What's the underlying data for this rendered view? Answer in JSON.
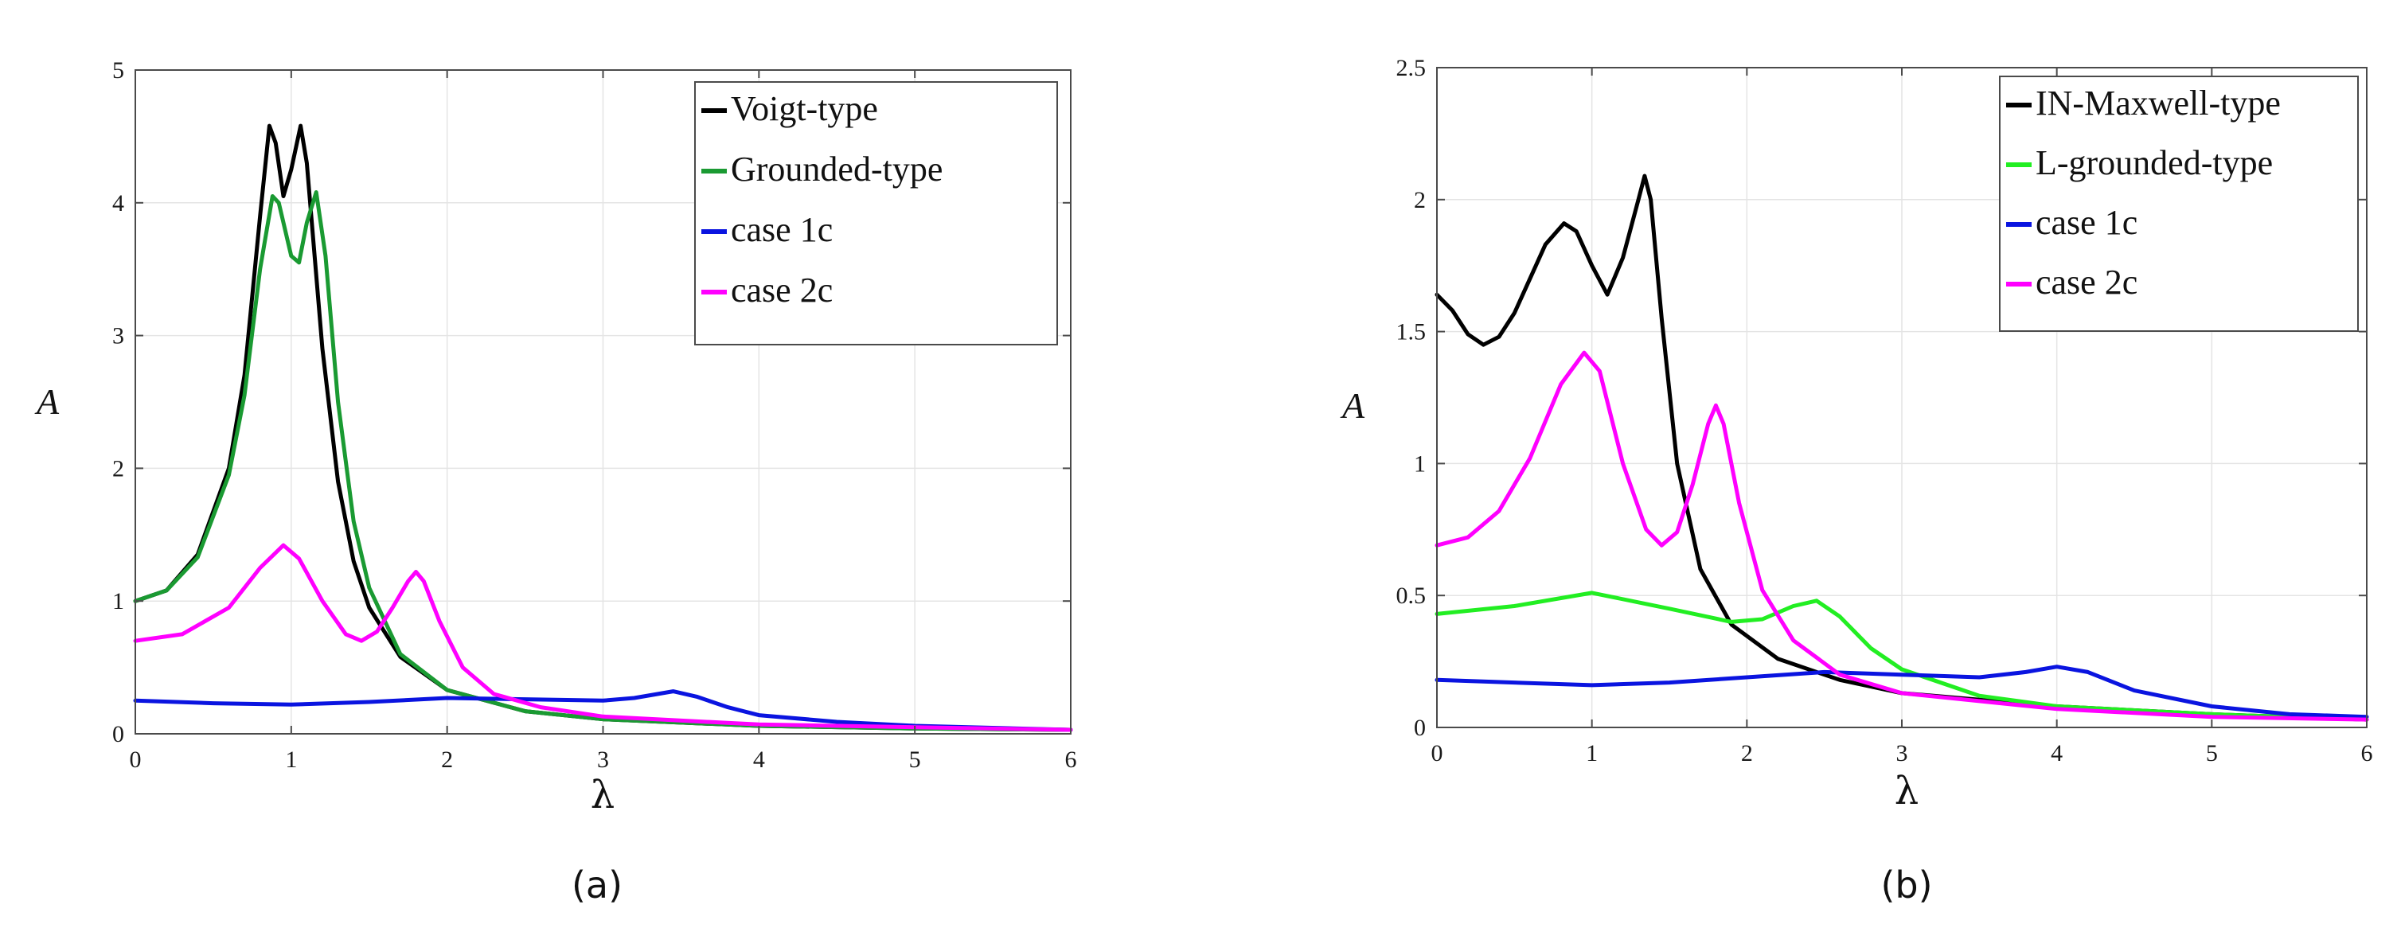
{
  "chart_data": [
    {
      "type": "line",
      "panel": "a",
      "caption": "(a)",
      "xlabel": "λ",
      "ylabel": "A",
      "xlim": [
        0,
        6
      ],
      "ylim": [
        0,
        5
      ],
      "xticks": [
        0,
        1,
        2,
        3,
        4,
        5,
        6
      ],
      "yticks": [
        0,
        1,
        2,
        3,
        4,
        5
      ],
      "grid": true,
      "legend_position": "top-right",
      "series": [
        {
          "name": "Voigt-type",
          "color": "#000000",
          "points": [
            [
              0,
              1.0
            ],
            [
              0.2,
              1.08
            ],
            [
              0.4,
              1.35
            ],
            [
              0.6,
              2.0
            ],
            [
              0.7,
              2.7
            ],
            [
              0.8,
              3.9
            ],
            [
              0.86,
              4.58
            ],
            [
              0.9,
              4.45
            ],
            [
              0.95,
              4.05
            ],
            [
              1.0,
              4.25
            ],
            [
              1.06,
              4.58
            ],
            [
              1.1,
              4.3
            ],
            [
              1.2,
              2.9
            ],
            [
              1.3,
              1.9
            ],
            [
              1.4,
              1.3
            ],
            [
              1.5,
              0.95
            ],
            [
              1.7,
              0.58
            ],
            [
              2.0,
              0.33
            ],
            [
              2.5,
              0.17
            ],
            [
              3.0,
              0.11
            ],
            [
              4.0,
              0.06
            ],
            [
              5.0,
              0.04
            ],
            [
              6.0,
              0.03
            ]
          ]
        },
        {
          "name": "Grounded-type",
          "color": "#1a9a32",
          "points": [
            [
              0,
              1.0
            ],
            [
              0.2,
              1.08
            ],
            [
              0.4,
              1.33
            ],
            [
              0.6,
              1.95
            ],
            [
              0.7,
              2.55
            ],
            [
              0.8,
              3.5
            ],
            [
              0.88,
              4.05
            ],
            [
              0.92,
              4.0
            ],
            [
              1.0,
              3.6
            ],
            [
              1.05,
              3.55
            ],
            [
              1.1,
              3.85
            ],
            [
              1.16,
              4.08
            ],
            [
              1.22,
              3.6
            ],
            [
              1.3,
              2.5
            ],
            [
              1.4,
              1.6
            ],
            [
              1.5,
              1.1
            ],
            [
              1.7,
              0.6
            ],
            [
              2.0,
              0.33
            ],
            [
              2.5,
              0.17
            ],
            [
              3.0,
              0.11
            ],
            [
              4.0,
              0.06
            ],
            [
              5.0,
              0.04
            ],
            [
              6.0,
              0.03
            ]
          ]
        },
        {
          "name": "case 1c",
          "color": "#0a14e0",
          "points": [
            [
              0,
              0.25
            ],
            [
              0.5,
              0.23
            ],
            [
              1.0,
              0.22
            ],
            [
              1.5,
              0.24
            ],
            [
              2.0,
              0.27
            ],
            [
              2.5,
              0.26
            ],
            [
              3.0,
              0.25
            ],
            [
              3.2,
              0.27
            ],
            [
              3.45,
              0.32
            ],
            [
              3.6,
              0.28
            ],
            [
              3.8,
              0.2
            ],
            [
              4.0,
              0.14
            ],
            [
              4.5,
              0.09
            ],
            [
              5.0,
              0.06
            ],
            [
              6.0,
              0.03
            ]
          ]
        },
        {
          "name": "case 2c",
          "color": "#ff00ff",
          "points": [
            [
              0,
              0.7
            ],
            [
              0.3,
              0.75
            ],
            [
              0.6,
              0.95
            ],
            [
              0.8,
              1.25
            ],
            [
              0.95,
              1.42
            ],
            [
              1.05,
              1.32
            ],
            [
              1.2,
              1.0
            ],
            [
              1.35,
              0.75
            ],
            [
              1.45,
              0.7
            ],
            [
              1.55,
              0.77
            ],
            [
              1.65,
              0.95
            ],
            [
              1.75,
              1.15
            ],
            [
              1.8,
              1.22
            ],
            [
              1.85,
              1.15
            ],
            [
              1.95,
              0.85
            ],
            [
              2.1,
              0.5
            ],
            [
              2.3,
              0.3
            ],
            [
              2.6,
              0.2
            ],
            [
              3.0,
              0.13
            ],
            [
              4.0,
              0.07
            ],
            [
              5.0,
              0.05
            ],
            [
              6.0,
              0.03
            ]
          ]
        }
      ]
    },
    {
      "type": "line",
      "panel": "b",
      "caption": "(b)",
      "xlabel": "λ",
      "ylabel": "A",
      "xlim": [
        0,
        6
      ],
      "ylim": [
        0,
        2.5
      ],
      "xticks": [
        0,
        1,
        2,
        3,
        4,
        5,
        6
      ],
      "yticks": [
        0,
        0.5,
        1,
        1.5,
        2,
        2.5
      ],
      "grid": true,
      "legend_position": "top-right",
      "series": [
        {
          "name": "IN-Maxwell-type",
          "color": "#000000",
          "points": [
            [
              0,
              1.64
            ],
            [
              0.1,
              1.58
            ],
            [
              0.2,
              1.49
            ],
            [
              0.3,
              1.45
            ],
            [
              0.4,
              1.48
            ],
            [
              0.5,
              1.57
            ],
            [
              0.6,
              1.7
            ],
            [
              0.7,
              1.83
            ],
            [
              0.82,
              1.91
            ],
            [
              0.9,
              1.88
            ],
            [
              1.0,
              1.75
            ],
            [
              1.1,
              1.64
            ],
            [
              1.2,
              1.78
            ],
            [
              1.3,
              2.0
            ],
            [
              1.34,
              2.09
            ],
            [
              1.38,
              2.0
            ],
            [
              1.45,
              1.55
            ],
            [
              1.55,
              1.0
            ],
            [
              1.7,
              0.6
            ],
            [
              1.9,
              0.39
            ],
            [
              2.2,
              0.26
            ],
            [
              2.6,
              0.18
            ],
            [
              3.0,
              0.13
            ],
            [
              4.0,
              0.08
            ],
            [
              5.0,
              0.05
            ],
            [
              6.0,
              0.03
            ]
          ]
        },
        {
          "name": "L-grounded-type",
          "color": "#22ee22",
          "points": [
            [
              0,
              0.43
            ],
            [
              0.5,
              0.46
            ],
            [
              1.0,
              0.51
            ],
            [
              1.5,
              0.45
            ],
            [
              1.9,
              0.4
            ],
            [
              2.1,
              0.41
            ],
            [
              2.3,
              0.46
            ],
            [
              2.45,
              0.48
            ],
            [
              2.6,
              0.42
            ],
            [
              2.8,
              0.3
            ],
            [
              3.0,
              0.22
            ],
            [
              3.5,
              0.12
            ],
            [
              4.0,
              0.08
            ],
            [
              5.0,
              0.05
            ],
            [
              6.0,
              0.03
            ]
          ]
        },
        {
          "name": "case 1c",
          "color": "#0a14e0",
          "points": [
            [
              0,
              0.18
            ],
            [
              0.5,
              0.17
            ],
            [
              1.0,
              0.16
            ],
            [
              1.5,
              0.17
            ],
            [
              2.0,
              0.19
            ],
            [
              2.5,
              0.21
            ],
            [
              3.0,
              0.2
            ],
            [
              3.5,
              0.19
            ],
            [
              3.8,
              0.21
            ],
            [
              4.0,
              0.23
            ],
            [
              4.2,
              0.21
            ],
            [
              4.5,
              0.14
            ],
            [
              5.0,
              0.08
            ],
            [
              5.5,
              0.05
            ],
            [
              6.0,
              0.04
            ]
          ]
        },
        {
          "name": "case 2c",
          "color": "#ff00ff",
          "points": [
            [
              0,
              0.69
            ],
            [
              0.2,
              0.72
            ],
            [
              0.4,
              0.82
            ],
            [
              0.6,
              1.02
            ],
            [
              0.8,
              1.3
            ],
            [
              0.95,
              1.42
            ],
            [
              1.05,
              1.35
            ],
            [
              1.2,
              1.0
            ],
            [
              1.35,
              0.75
            ],
            [
              1.45,
              0.69
            ],
            [
              1.55,
              0.74
            ],
            [
              1.65,
              0.92
            ],
            [
              1.75,
              1.15
            ],
            [
              1.8,
              1.22
            ],
            [
              1.85,
              1.15
            ],
            [
              1.95,
              0.85
            ],
            [
              2.1,
              0.52
            ],
            [
              2.3,
              0.33
            ],
            [
              2.6,
              0.2
            ],
            [
              3.0,
              0.13
            ],
            [
              4.0,
              0.07
            ],
            [
              5.0,
              0.04
            ],
            [
              6.0,
              0.03
            ]
          ]
        }
      ]
    }
  ]
}
